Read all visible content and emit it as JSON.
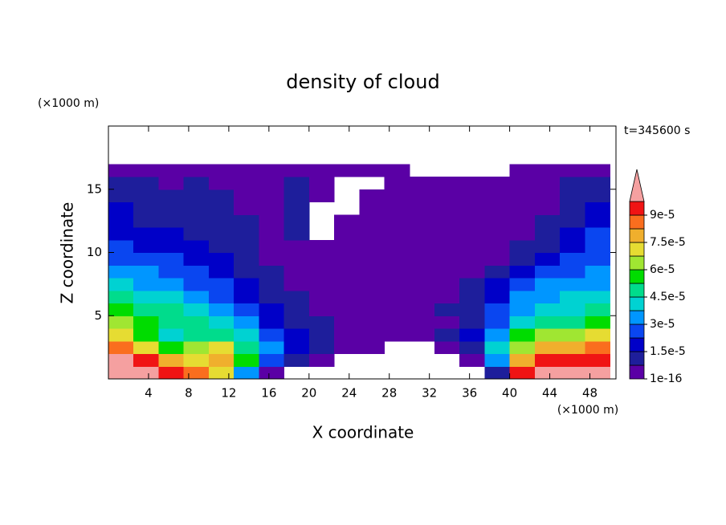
{
  "chart_data": {
    "type": "contour",
    "title": "density of cloud",
    "x_label": "X coordinate",
    "y_label": "Z coordinate",
    "x_unit": "(×1000 m)",
    "y_unit": "(×1000 m)",
    "time_label": "t=345600 s",
    "xlim": [
      0,
      50.6
    ],
    "ylim": [
      0,
      20
    ],
    "xticks": [
      4,
      8,
      12,
      16,
      20,
      24,
      28,
      32,
      36,
      40,
      44,
      48
    ],
    "yticks": [
      5,
      10,
      15
    ],
    "x": [
      1.25,
      3.75,
      6.25,
      8.75,
      11.25,
      13.75,
      16.25,
      18.75,
      21.25,
      23.75,
      26.25,
      28.75,
      31.25,
      33.75,
      36.25,
      38.75,
      41.25,
      43.75,
      46.25,
      48.75
    ],
    "z": [
      0.5,
      1.5,
      2.5,
      3.5,
      4.5,
      5.5,
      6.5,
      7.5,
      8.5,
      9.5,
      10.5,
      11.5,
      12.5,
      13.5,
      14.5,
      15.5,
      16.5
    ],
    "values": [
      [
        0.000105,
        0.000105,
        9.3e-05,
        8.55e-05,
        7.05e-05,
        3.3e-05,
        3e-06,
        null,
        null,
        null,
        null,
        null,
        null,
        null,
        null,
        1.05e-05,
        9.3e-05,
        0.000105,
        0.000105,
        0.000105
      ],
      [
        0.000105,
        9.3e-05,
        7.8e-05,
        7.05e-05,
        7.8e-05,
        5.55e-05,
        2.55e-05,
        1.05e-05,
        3e-06,
        null,
        null,
        null,
        null,
        null,
        3e-06,
        3.3e-05,
        7.8e-05,
        9.3e-05,
        9.3e-05,
        9.3e-05
      ],
      [
        8.55e-05,
        7.05e-05,
        5.55e-05,
        6.3e-05,
        7.05e-05,
        4.8e-05,
        3.3e-05,
        1.8e-05,
        1.05e-05,
        3e-06,
        3e-06,
        null,
        null,
        3e-06,
        1.05e-05,
        4.05e-05,
        6.3e-05,
        7.8e-05,
        7.8e-05,
        8.55e-05
      ],
      [
        7.05e-05,
        5.55e-05,
        4.05e-05,
        4.8e-05,
        4.8e-05,
        4.05e-05,
        2.55e-05,
        1.8e-05,
        1.05e-05,
        3e-06,
        3e-06,
        3e-06,
        3e-06,
        1.05e-05,
        1.8e-05,
        3.3e-05,
        5.55e-05,
        6.3e-05,
        6.3e-05,
        7.05e-05
      ],
      [
        6.3e-05,
        5.55e-05,
        4.8e-05,
        4.8e-05,
        4.05e-05,
        3.3e-05,
        1.8e-05,
        1.05e-05,
        1.05e-05,
        3e-06,
        3e-06,
        3e-06,
        3e-06,
        3e-06,
        1.05e-05,
        2.55e-05,
        4.05e-05,
        4.8e-05,
        4.8e-05,
        5.55e-05
      ],
      [
        5.55e-05,
        4.8e-05,
        4.8e-05,
        4.05e-05,
        3.3e-05,
        2.55e-05,
        1.8e-05,
        1.05e-05,
        3e-06,
        3e-06,
        3e-06,
        3e-06,
        3e-06,
        1.05e-05,
        1.05e-05,
        2.55e-05,
        3.3e-05,
        4.05e-05,
        4.05e-05,
        4.8e-05
      ],
      [
        4.8e-05,
        4.05e-05,
        4.05e-05,
        3.3e-05,
        2.55e-05,
        1.8e-05,
        1.05e-05,
        1.05e-05,
        3e-06,
        3e-06,
        3e-06,
        3e-06,
        3e-06,
        3e-06,
        1.05e-05,
        1.8e-05,
        3.3e-05,
        3.3e-05,
        4.05e-05,
        4.05e-05
      ],
      [
        4.05e-05,
        3.3e-05,
        3.3e-05,
        2.55e-05,
        2.55e-05,
        1.8e-05,
        1.05e-05,
        3e-06,
        3e-06,
        3e-06,
        3e-06,
        3e-06,
        3e-06,
        3e-06,
        1.05e-05,
        1.8e-05,
        2.55e-05,
        3.3e-05,
        3.3e-05,
        3.3e-05
      ],
      [
        3.3e-05,
        3.3e-05,
        2.55e-05,
        2.55e-05,
        1.8e-05,
        1.05e-05,
        1.05e-05,
        3e-06,
        3e-06,
        3e-06,
        3e-06,
        3e-06,
        3e-06,
        3e-06,
        3e-06,
        1.05e-05,
        1.8e-05,
        2.55e-05,
        2.55e-05,
        3.3e-05
      ],
      [
        2.55e-05,
        2.55e-05,
        2.55e-05,
        1.8e-05,
        1.8e-05,
        1.05e-05,
        3e-06,
        3e-06,
        3e-06,
        3e-06,
        3e-06,
        3e-06,
        3e-06,
        3e-06,
        3e-06,
        3e-06,
        1.05e-05,
        1.8e-05,
        2.55e-05,
        2.55e-05
      ],
      [
        2.55e-05,
        1.8e-05,
        1.8e-05,
        1.8e-05,
        1.05e-05,
        1.05e-05,
        3e-06,
        3e-06,
        3e-06,
        3e-06,
        3e-06,
        3e-06,
        3e-06,
        3e-06,
        3e-06,
        3e-06,
        1.05e-05,
        1.05e-05,
        1.8e-05,
        2.55e-05
      ],
      [
        1.8e-05,
        1.8e-05,
        1.8e-05,
        1.05e-05,
        1.05e-05,
        1.05e-05,
        3e-06,
        1.05e-05,
        null,
        3e-06,
        3e-06,
        3e-06,
        3e-06,
        3e-06,
        3e-06,
        3e-06,
        3e-06,
        1.05e-05,
        1.8e-05,
        2.55e-05
      ],
      [
        1.8e-05,
        1.05e-05,
        1.05e-05,
        1.05e-05,
        1.05e-05,
        1.05e-05,
        3e-06,
        1.05e-05,
        null,
        3e-06,
        3e-06,
        3e-06,
        3e-06,
        3e-06,
        3e-06,
        3e-06,
        3e-06,
        1.05e-05,
        1.05e-05,
        1.8e-05
      ],
      [
        1.8e-05,
        1.05e-05,
        1.05e-05,
        1.05e-05,
        1.05e-05,
        3e-06,
        3e-06,
        1.05e-05,
        null,
        null,
        3e-06,
        3e-06,
        3e-06,
        3e-06,
        3e-06,
        3e-06,
        3e-06,
        3e-06,
        1.05e-05,
        1.8e-05
      ],
      [
        1.05e-05,
        1.05e-05,
        1.05e-05,
        1.05e-05,
        1.05e-05,
        3e-06,
        3e-06,
        1.05e-05,
        3e-06,
        null,
        3e-06,
        3e-06,
        3e-06,
        3e-06,
        3e-06,
        3e-06,
        3e-06,
        3e-06,
        1.05e-05,
        1.05e-05
      ],
      [
        1.05e-05,
        1.05e-05,
        3e-06,
        1.05e-05,
        3e-06,
        3e-06,
        3e-06,
        1.05e-05,
        3e-06,
        null,
        null,
        3e-06,
        3e-06,
        3e-06,
        3e-06,
        3e-06,
        3e-06,
        3e-06,
        1.05e-05,
        1.05e-05
      ],
      [
        3e-06,
        3e-06,
        3e-06,
        3e-06,
        3e-06,
        3e-06,
        3e-06,
        3e-06,
        3e-06,
        3e-06,
        3e-06,
        3e-06,
        null,
        null,
        null,
        null,
        3e-06,
        3e-06,
        3e-06,
        3e-06
      ]
    ],
    "levels": [
      1e-16,
      7.5e-06,
      1.5e-05,
      2.25e-05,
      3e-05,
      3.75e-05,
      4.5e-05,
      5.25e-05,
      6e-05,
      6.75e-05,
      7.5e-05,
      8.25e-05,
      9e-05,
      9.75e-05
    ],
    "colors": [
      "#5a00a5",
      "#1e1e9b",
      "#0000c8",
      "#0a46f0",
      "#0096ff",
      "#00d2d2",
      "#00dc8c",
      "#00dc00",
      "#a0e632",
      "#e6dc32",
      "#f0af2d",
      "#fa6e1e",
      "#f01414",
      "#f5a0a0"
    ],
    "cticks": [
      1e-16,
      {
        "value": 1.5e-05,
        "label": "1.5e-5"
      },
      {
        "value": 3e-05,
        "label": "3e-5"
      },
      {
        "value": 4.5e-05,
        "label": "4.5e-5"
      },
      {
        "value": 6e-05,
        "label": "6e-5"
      },
      {
        "value": 7.5e-05,
        "label": "7.5e-5"
      },
      {
        "value": 9e-05,
        "label": "9e-5"
      }
    ]
  }
}
